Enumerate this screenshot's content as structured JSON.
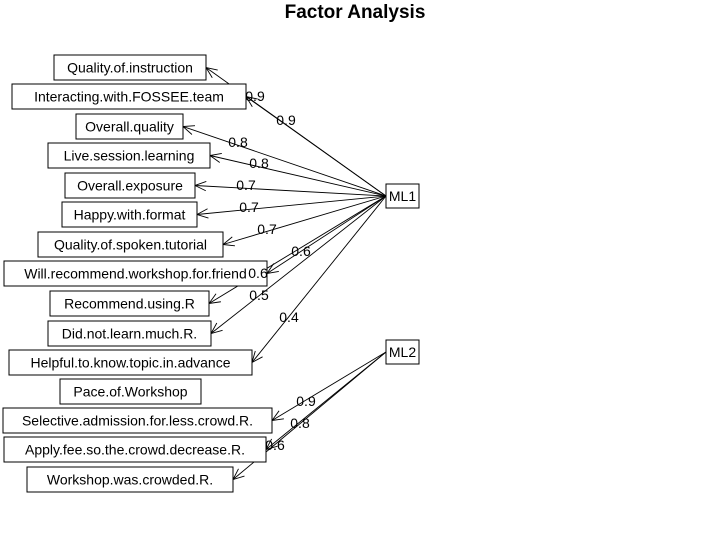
{
  "diagram": {
    "title": "Factor Analysis",
    "factors": [
      {
        "id": "ml1",
        "label": "ML1"
      },
      {
        "id": "ml2",
        "label": "ML2"
      }
    ],
    "variables": [
      {
        "label": "Quality.of.instruction"
      },
      {
        "label": "Interacting.with.FOSSEE.team"
      },
      {
        "label": "Overall.quality"
      },
      {
        "label": "Live.session.learning"
      },
      {
        "label": "Overall.exposure"
      },
      {
        "label": "Happy.with.format"
      },
      {
        "label": "Quality.of.spoken.tutorial"
      },
      {
        "label": "Will.recommend.workshop.for.friend"
      },
      {
        "label": "Recommend.using.R"
      },
      {
        "label": "Did.not.learn.much.R."
      },
      {
        "label": "Helpful.to.know.topic.in.advance"
      },
      {
        "label": "Pace.of.Workshop"
      },
      {
        "label": "Selective.admission.for.less.crowd.R."
      },
      {
        "label": "Apply.fee.so.the.crowd.decrease.R."
      },
      {
        "label": "Workshop.was.crowded.R."
      }
    ],
    "loadings": [
      {
        "factor": "ML1",
        "variable": "Quality.of.instruction",
        "value": "0.9"
      },
      {
        "factor": "ML1",
        "variable": "Interacting.with.FOSSEE.team",
        "value": "0.9"
      },
      {
        "factor": "ML1",
        "variable": "Overall.quality",
        "value": "0.8"
      },
      {
        "factor": "ML1",
        "variable": "Live.session.learning",
        "value": "0.8"
      },
      {
        "factor": "ML1",
        "variable": "Overall.exposure",
        "value": "0.7"
      },
      {
        "factor": "ML1",
        "variable": "Happy.with.format",
        "value": "0.7"
      },
      {
        "factor": "ML1",
        "variable": "Quality.of.spoken.tutorial",
        "value": "0.7"
      },
      {
        "factor": "ML1",
        "variable": "Will.recommend.workshop.for.friend",
        "value": "0.6"
      },
      {
        "factor": "ML1",
        "variable": "Recommend.using.R",
        "value": "0.6"
      },
      {
        "factor": "ML1",
        "variable": "Did.not.learn.much.R.",
        "value": "0.5"
      },
      {
        "factor": "ML1",
        "variable": "Helpful.to.know.topic.in.advance",
        "value": "0.4"
      },
      {
        "factor": "ML2",
        "variable": "Selective.admission.for.less.crowd.R.",
        "value": "0.9"
      },
      {
        "factor": "ML2",
        "variable": "Apply.fee.so.the.crowd.decrease.R.",
        "value": "0.8"
      },
      {
        "factor": "ML2",
        "variable": "Workshop.was.crowded.R.",
        "value": "0.6"
      }
    ]
  }
}
